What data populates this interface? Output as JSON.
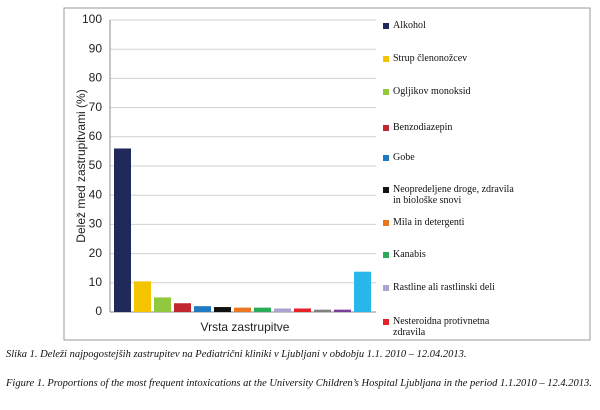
{
  "chart_data": {
    "type": "bar",
    "ylabel": "Delež med zastrupitvami (%)",
    "xlabel": "Vrsta zastrupitve",
    "ylim": [
      0,
      100
    ],
    "yticks": [
      0,
      10,
      20,
      30,
      40,
      50,
      60,
      70,
      80,
      90,
      100
    ],
    "grid": true,
    "legend": "right",
    "series": [
      {
        "name": "Alkohol",
        "color": "#1f2a5a",
        "values": [
          56
        ]
      },
      {
        "name": "Strup členonožcev",
        "color": "#f5c400",
        "values": [
          10.5
        ]
      },
      {
        "name": "Ogljikov monoksid",
        "color": "#92c83e",
        "values": [
          5
        ]
      },
      {
        "name": "Benzodiazepin",
        "color": "#c0282d",
        "values": [
          3
        ]
      },
      {
        "name": "Gobe",
        "color": "#1f7bc1",
        "values": [
          2
        ]
      },
      {
        "name": "Neopredeljene droge, zdravila in biološke snovi",
        "color": "#111111",
        "values": [
          1.7
        ]
      },
      {
        "name": "Mila in detergenti",
        "color": "#e87722",
        "values": [
          1.5
        ]
      },
      {
        "name": "Kanabis",
        "color": "#2bab5a",
        "values": [
          1.5
        ]
      },
      {
        "name": "Rastline ali rastlinski deli",
        "color": "#a9a3cf",
        "values": [
          1.2
        ]
      },
      {
        "name": "Nesteroidna protivnetna zdravila",
        "color": "#e8202a",
        "values": [
          1.2
        ]
      },
      {
        "name": null,
        "color": "#7f7f7f",
        "values": [
          0.8
        ]
      },
      {
        "name": null,
        "color": "#7b3f98",
        "values": [
          0.8
        ]
      },
      {
        "name": null,
        "color": "#29b6e8",
        "values": [
          13.8
        ]
      }
    ]
  },
  "captions": [
    "Slika 1. Deleži najpogostejših zastrupitev na Pediatrični kliniki v Ljubljani v obdobju 1.1. 2010 – 12.04.2013.",
    "Figure 1. Proportions of the most frequent intoxications at the University Children’s Hospital Ljubljana in the period 1.1.2010 – 12.4.2013."
  ]
}
